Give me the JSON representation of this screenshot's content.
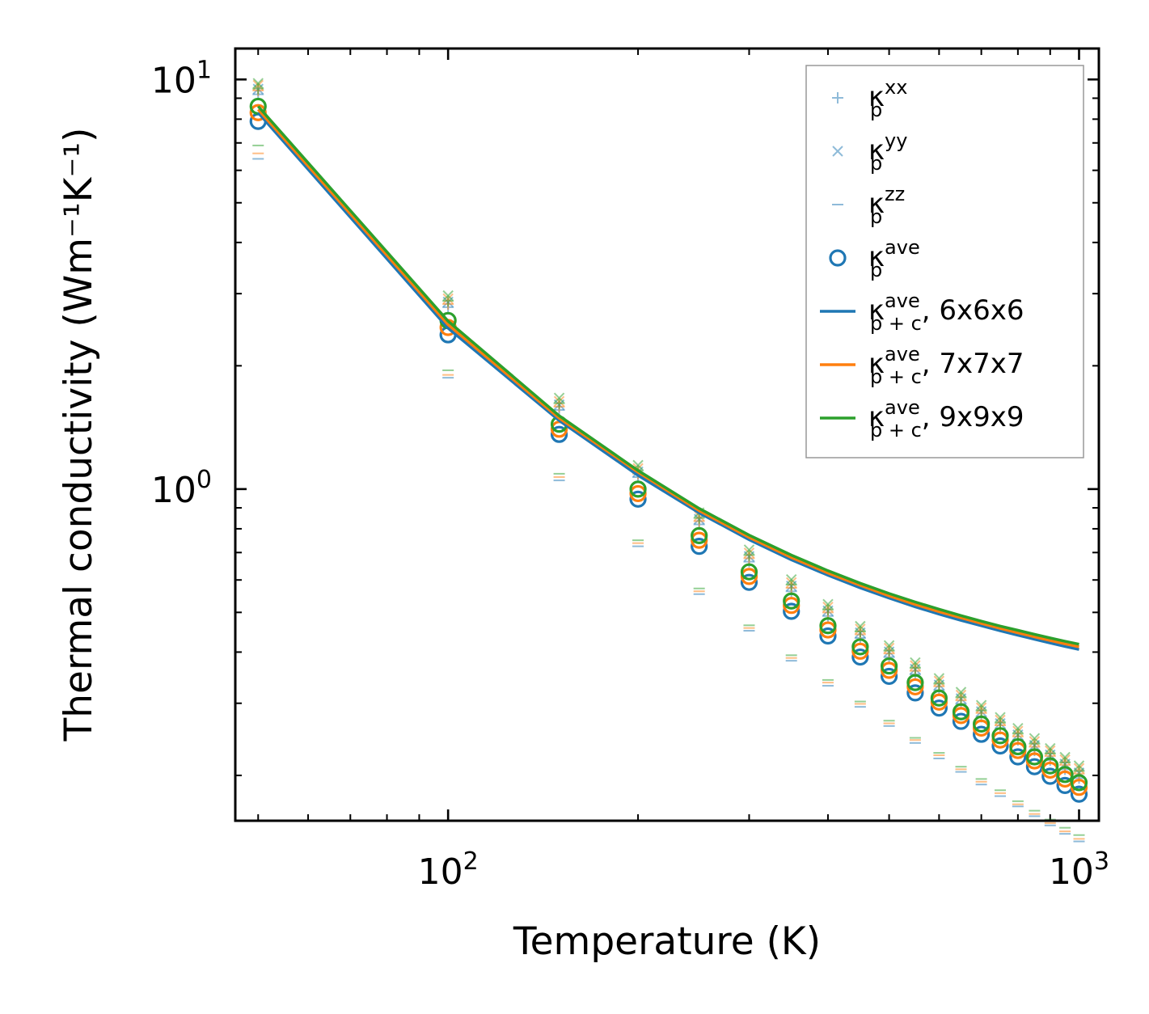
{
  "chart_data": {
    "type": "scatter",
    "xlabel": "Temperature (K)",
    "ylabel": "Thermal conductivity (Wm⁻¹K⁻¹)",
    "xscale": "log",
    "yscale": "log",
    "xlim": [
      46,
      1075
    ],
    "ylim": [
      0.155,
      11.9
    ],
    "x_ticks": [
      {
        "base": "10",
        "exp": "2",
        "value": 100
      },
      {
        "base": "10",
        "exp": "3",
        "value": 1000
      }
    ],
    "y_ticks": [
      {
        "base": "10",
        "exp": "0",
        "value": 1
      },
      {
        "base": "10",
        "exp": "1",
        "value": 10
      }
    ],
    "legend_position": "top-right",
    "colors": {
      "c1": "#1f77b4",
      "c2": "#ff7f0e",
      "c3": "#2ca02c"
    },
    "x": [
      50,
      100,
      150,
      200,
      250,
      300,
      350,
      400,
      450,
      500,
      550,
      600,
      650,
      700,
      750,
      800,
      850,
      900,
      950,
      1000
    ],
    "series": [
      {
        "name": "6x6x6",
        "color": "#1f77b4",
        "ave_p": [
          7.9,
          2.38,
          1.36,
          0.945,
          0.725,
          0.592,
          0.503,
          0.438,
          0.389,
          0.349,
          0.318,
          0.292,
          0.271,
          0.252,
          0.236,
          0.222,
          0.21,
          0.199,
          0.189,
          0.18
        ],
        "xx": [
          9.2,
          2.78,
          1.56,
          1.07,
          0.82,
          0.665,
          0.563,
          0.49,
          0.433,
          0.389,
          0.353,
          0.323,
          0.299,
          0.278,
          0.26,
          0.244,
          0.23,
          0.218,
          0.207,
          0.197
        ],
        "zz": [
          6.4,
          1.87,
          1.05,
          0.725,
          0.554,
          0.451,
          0.381,
          0.331,
          0.294,
          0.264,
          0.24,
          0.22,
          0.204,
          0.19,
          0.178,
          0.168,
          0.159,
          0.151,
          0.144,
          0.138
        ],
        "ave_pc": [
          8.3,
          2.47,
          1.47,
          1.08,
          0.875,
          0.752,
          0.672,
          0.616,
          0.574,
          0.542,
          0.516,
          0.495,
          0.478,
          0.464,
          0.451,
          0.44,
          0.43,
          0.421,
          0.413,
          0.406
        ]
      },
      {
        "name": "7x7x7",
        "color": "#ff7f0e",
        "ave_p": [
          8.3,
          2.48,
          1.4,
          0.975,
          0.75,
          0.612,
          0.52,
          0.453,
          0.402,
          0.361,
          0.329,
          0.302,
          0.28,
          0.261,
          0.244,
          0.23,
          0.217,
          0.206,
          0.196,
          0.187
        ],
        "xx": [
          9.4,
          2.83,
          1.59,
          1.09,
          0.835,
          0.678,
          0.574,
          0.5,
          0.442,
          0.397,
          0.36,
          0.33,
          0.305,
          0.284,
          0.265,
          0.249,
          0.235,
          0.223,
          0.212,
          0.202
        ],
        "zz": [
          6.6,
          1.9,
          1.07,
          0.738,
          0.563,
          0.458,
          0.387,
          0.337,
          0.299,
          0.268,
          0.244,
          0.224,
          0.207,
          0.193,
          0.181,
          0.17,
          0.161,
          0.153,
          0.146,
          0.14
        ],
        "ave_pc": [
          8.45,
          2.52,
          1.49,
          1.1,
          0.886,
          0.762,
          0.681,
          0.624,
          0.582,
          0.549,
          0.523,
          0.502,
          0.485,
          0.47,
          0.457,
          0.446,
          0.436,
          0.427,
          0.419,
          0.412
        ]
      },
      {
        "name": "9x9x9",
        "color": "#2ca02c",
        "ave_p": [
          8.6,
          2.58,
          1.44,
          1.0,
          0.77,
          0.628,
          0.533,
          0.464,
          0.412,
          0.37,
          0.337,
          0.309,
          0.286,
          0.267,
          0.25,
          0.235,
          0.222,
          0.211,
          0.201,
          0.192
        ],
        "xx": [
          9.5,
          2.88,
          1.62,
          1.11,
          0.85,
          0.69,
          0.584,
          0.508,
          0.449,
          0.403,
          0.366,
          0.335,
          0.31,
          0.288,
          0.269,
          0.253,
          0.239,
          0.226,
          0.215,
          0.205
        ],
        "zz": [
          6.9,
          1.95,
          1.09,
          0.75,
          0.572,
          0.465,
          0.393,
          0.342,
          0.303,
          0.272,
          0.247,
          0.227,
          0.21,
          0.196,
          0.184,
          0.173,
          0.164,
          0.156,
          0.149,
          0.143
        ],
        "ave_pc": [
          8.6,
          2.57,
          1.51,
          1.11,
          0.897,
          0.772,
          0.69,
          0.632,
          0.589,
          0.556,
          0.53,
          0.509,
          0.491,
          0.476,
          0.463,
          0.452,
          0.442,
          0.433,
          0.425,
          0.418
        ]
      }
    ],
    "legend": [
      {
        "kind": "plus",
        "base": "κ",
        "sup": "xx",
        "sub": "p",
        "tail": ""
      },
      {
        "kind": "cross",
        "base": "κ",
        "sup": "yy",
        "sub": "p",
        "tail": ""
      },
      {
        "kind": "dash",
        "base": "κ",
        "sup": "zz",
        "sub": "p",
        "tail": ""
      },
      {
        "kind": "circle",
        "base": "κ",
        "sup": "ave",
        "sub": "p",
        "tail": ""
      },
      {
        "kind": "line",
        "base": "κ",
        "sup": "ave",
        "sub": "p + c",
        "tail": ", 6x6x6"
      },
      {
        "kind": "line",
        "base": "κ",
        "sup": "ave",
        "sub": "p + c",
        "tail": ", 7x7x7"
      },
      {
        "kind": "line",
        "base": "κ",
        "sup": "ave",
        "sub": "p + c",
        "tail": ", 9x9x9"
      }
    ]
  }
}
